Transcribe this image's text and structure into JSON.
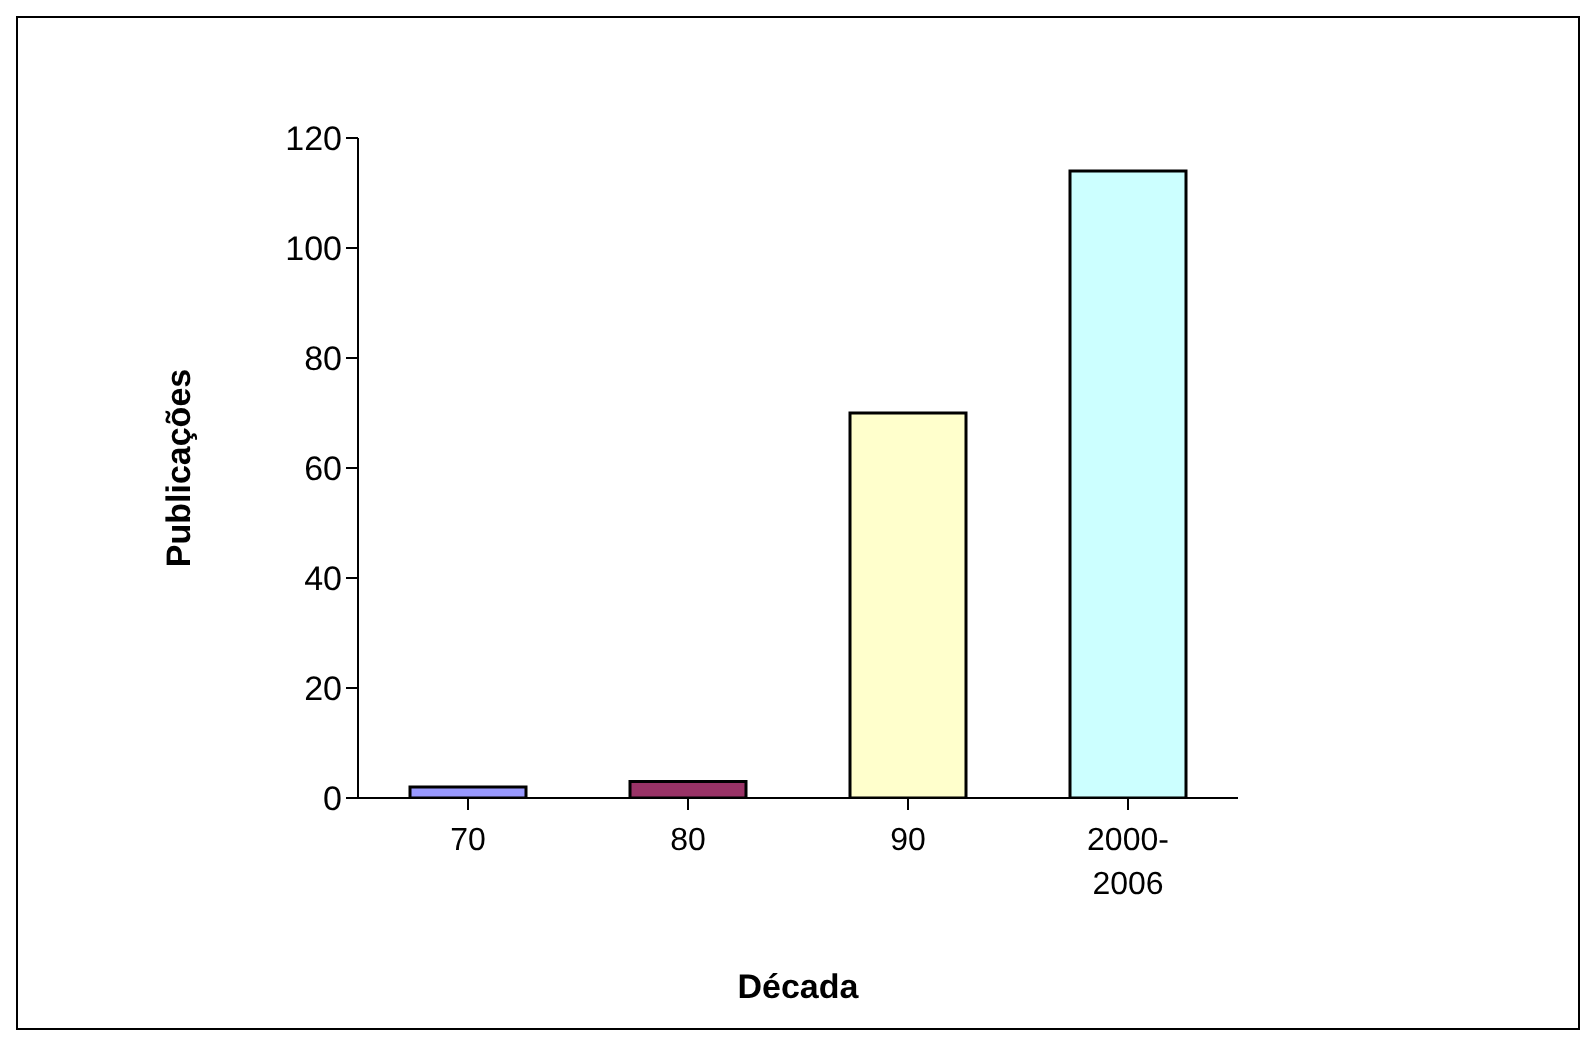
{
  "chart_data": {
    "type": "bar",
    "xlabel": "Década",
    "ylabel": "Publicações",
    "categories": [
      "70",
      "80",
      "90",
      "2000-\n2006"
    ],
    "values": [
      2,
      3,
      70,
      114
    ],
    "colors": [
      "#9999ff",
      "#993366",
      "#ffffcc",
      "#ccffff"
    ],
    "ylim": [
      0,
      120
    ],
    "yticks": [
      0,
      20,
      40,
      60,
      80,
      100,
      120
    ],
    "grid": false,
    "legend": false
  }
}
